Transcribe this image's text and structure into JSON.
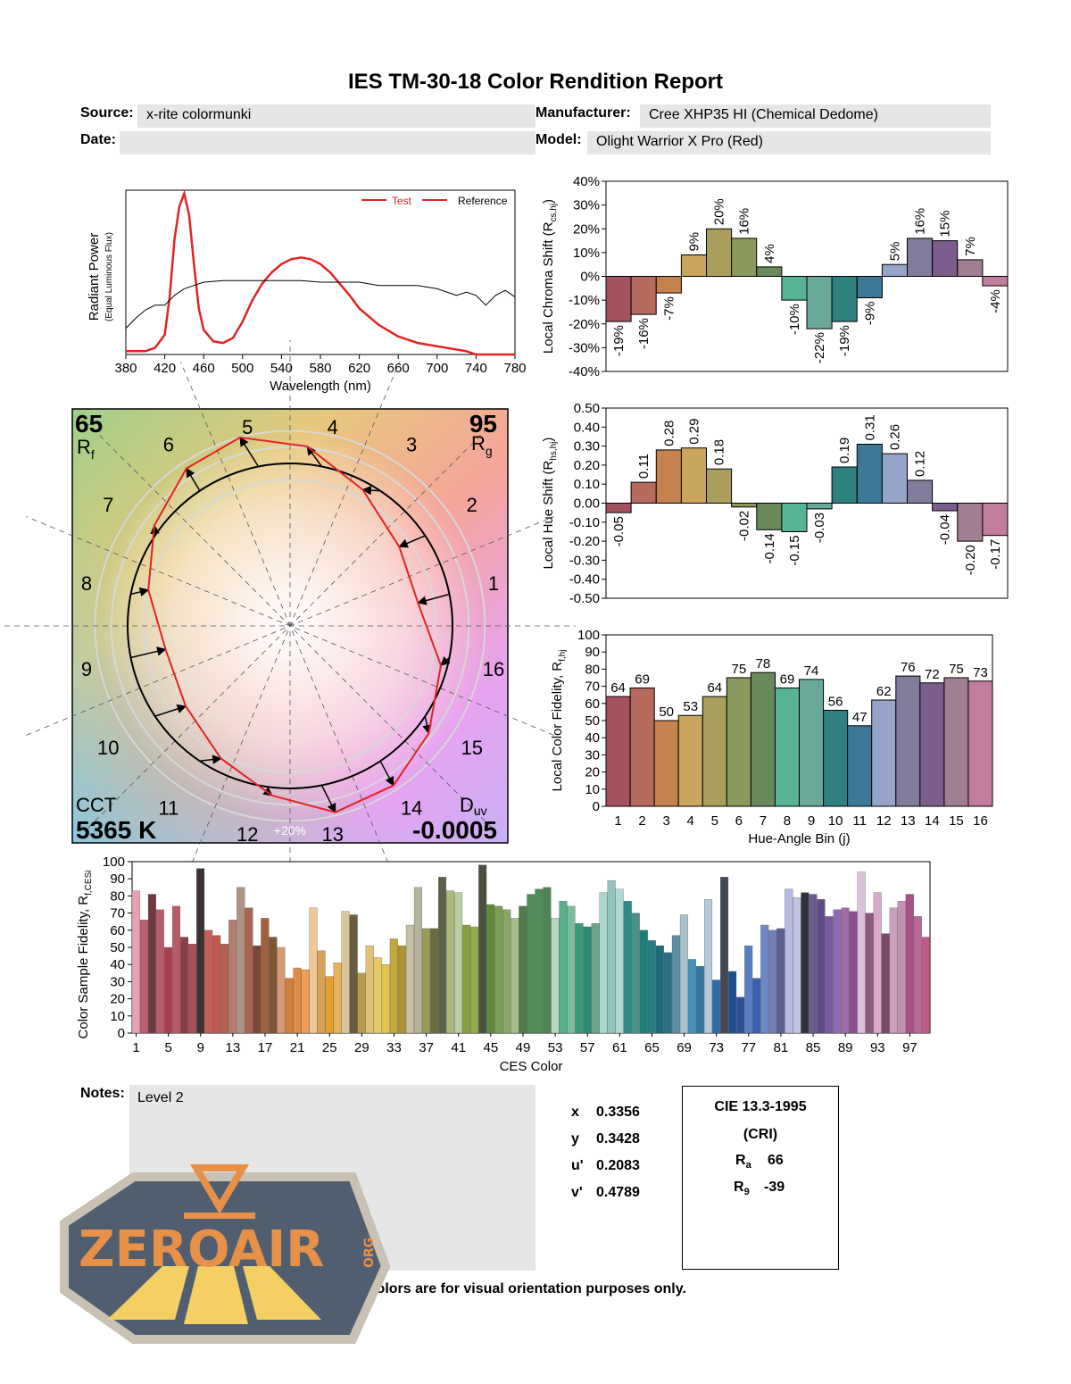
{
  "report": {
    "title": "IES TM-30-18 Color Rendition Report",
    "source_label": "Source:",
    "source_value": "x-rite colormunki",
    "manufacturer_label": "Manufacturer:",
    "manufacturer_value": "Cree XHP35 HI (Chemical Dedome)",
    "date_label": "Date:",
    "date_value": "",
    "model_label": "Model:",
    "model_value": "Olight Warrior X Pro (Red)",
    "notes_label": "Notes:",
    "notes_value": "Level 2",
    "disclaimer": "Colors are for visual orientation purposes only."
  },
  "chromaticity": [
    {
      "label": "x",
      "value": "0.3356"
    },
    {
      "label": "y",
      "value": "0.3428"
    },
    {
      "label": "u'",
      "value": "0.2083"
    },
    {
      "label": "v'",
      "value": "0.4789"
    }
  ],
  "cri": {
    "title": "CIE 13.3-1995",
    "subtitle": "(CRI)",
    "ra_label": "R",
    "ra_sub": "a",
    "ra_value": "66",
    "r9_label": "R",
    "r9_sub": "9",
    "r9_value": "-39"
  },
  "logo": {
    "text": "ZEROAIR",
    "suffix": "ORG"
  },
  "colors": {
    "bins": [
      "#a3525e",
      "#b56a5d",
      "#c5824e",
      "#c9a55e",
      "#a99e5c",
      "#8a9a5d",
      "#688a5a",
      "#57b395",
      "#6aa99a",
      "#2f8080",
      "#3e7897",
      "#95a4c8",
      "#7f7c9c",
      "#7b5e8b",
      "#a27e92",
      "#c27c9d"
    ],
    "test_line": "#e32222",
    "reference_line": "#000000"
  },
  "chart_data": [
    {
      "id": "spd",
      "type": "line",
      "xlabel": "Wavelength (nm)",
      "ylabel": "Radiant Power",
      "ylabel_sub": "(Equal Luminous Flux)",
      "xlim": [
        380,
        780
      ],
      "ylim": [
        0,
        1
      ],
      "xticks": [
        380,
        420,
        460,
        500,
        540,
        580,
        620,
        660,
        700,
        740,
        780
      ],
      "legend": [
        "Test",
        "Reference"
      ],
      "series": [
        {
          "name": "Test",
          "x": [
            380,
            400,
            410,
            420,
            425,
            430,
            435,
            440,
            445,
            450,
            455,
            460,
            470,
            480,
            490,
            500,
            510,
            520,
            530,
            540,
            550,
            560,
            570,
            580,
            590,
            600,
            610,
            620,
            640,
            660,
            680,
            700,
            720,
            730,
            740,
            780
          ],
          "y": [
            0.02,
            0.02,
            0.04,
            0.12,
            0.35,
            0.7,
            0.9,
            0.98,
            0.85,
            0.55,
            0.28,
            0.15,
            0.08,
            0.07,
            0.1,
            0.2,
            0.33,
            0.43,
            0.5,
            0.55,
            0.58,
            0.59,
            0.58,
            0.55,
            0.5,
            0.43,
            0.36,
            0.28,
            0.18,
            0.11,
            0.07,
            0.05,
            0.03,
            0.02,
            0.0,
            0.0
          ]
        },
        {
          "name": "Reference",
          "x": [
            380,
            390,
            400,
            410,
            420,
            430,
            440,
            450,
            460,
            480,
            500,
            520,
            540,
            560,
            580,
            600,
            620,
            640,
            660,
            680,
            700,
            710,
            720,
            730,
            740,
            750,
            760,
            770,
            780
          ],
          "y": [
            0.16,
            0.22,
            0.27,
            0.3,
            0.3,
            0.36,
            0.4,
            0.42,
            0.44,
            0.45,
            0.45,
            0.45,
            0.45,
            0.45,
            0.44,
            0.44,
            0.44,
            0.42,
            0.42,
            0.42,
            0.4,
            0.38,
            0.36,
            0.38,
            0.36,
            0.3,
            0.36,
            0.39,
            0.35
          ]
        }
      ]
    },
    {
      "id": "chroma_shift",
      "type": "bar",
      "ylabel": "Local Chroma Shift (R",
      "ylabel_sub": "cs,hj",
      "ylim": [
        -0.4,
        0.4
      ],
      "yticks": [
        "40%",
        "30%",
        "20%",
        "10%",
        "0%",
        "-10%",
        "-20%",
        "-30%",
        "-40%"
      ],
      "categories": [
        "1",
        "2",
        "3",
        "4",
        "5",
        "6",
        "7",
        "8",
        "9",
        "10",
        "11",
        "12",
        "13",
        "14",
        "15",
        "16"
      ],
      "values": [
        -0.19,
        -0.16,
        -0.07,
        0.09,
        0.2,
        0.16,
        0.04,
        -0.1,
        -0.22,
        -0.19,
        -0.09,
        0.05,
        0.16,
        0.15,
        0.07,
        -0.04
      ],
      "labels": [
        "-19%",
        "-16%",
        "-7%",
        "9%",
        "20%",
        "16%",
        "4%",
        "-10%",
        "-22%",
        "-19%",
        "-9%",
        "5%",
        "16%",
        "15%",
        "7%",
        "-4%"
      ]
    },
    {
      "id": "hue_shift",
      "type": "bar",
      "ylabel": "Local Hue Shift (R",
      "ylabel_sub": "hs,hj",
      "ylim": [
        -0.5,
        0.5
      ],
      "yticks": [
        "0.50",
        "0.40",
        "0.30",
        "0.20",
        "0.10",
        "0.00",
        "-0.10",
        "-0.20",
        "-0.30",
        "-0.40",
        "-0.50"
      ],
      "categories": [
        "1",
        "2",
        "3",
        "4",
        "5",
        "6",
        "7",
        "8",
        "9",
        "10",
        "11",
        "12",
        "13",
        "14",
        "15",
        "16"
      ],
      "values": [
        -0.05,
        0.11,
        0.28,
        0.29,
        0.18,
        -0.02,
        -0.14,
        -0.15,
        -0.03,
        0.19,
        0.31,
        0.26,
        0.12,
        -0.04,
        -0.2,
        -0.17
      ],
      "labels": [
        "-0.05",
        "0.11",
        "0.28",
        "0.29",
        "0.18",
        "-0.02",
        "-0.14",
        "-0.15",
        "-0.03",
        "0.19",
        "0.31",
        "0.26",
        "0.12",
        "-0.04",
        "-0.20",
        "-0.17"
      ]
    },
    {
      "id": "local_fidelity",
      "type": "bar",
      "ylabel": "Local Color Fidelity, R",
      "ylabel_sub": "f,hj",
      "xlabel": "Hue-Angle Bin (j)",
      "ylim": [
        0,
        100
      ],
      "yticks": [
        "100",
        "90",
        "80",
        "70",
        "60",
        "50",
        "40",
        "30",
        "20",
        "10",
        "0"
      ],
      "categories": [
        "1",
        "2",
        "3",
        "4",
        "5",
        "6",
        "7",
        "8",
        "9",
        "10",
        "11",
        "12",
        "13",
        "14",
        "15",
        "16"
      ],
      "values": [
        64,
        69,
        50,
        53,
        64,
        75,
        78,
        69,
        74,
        56,
        47,
        62,
        76,
        72,
        75,
        73
      ],
      "labels": [
        "64",
        "69",
        "50",
        "53",
        "64",
        "75",
        "78",
        "69",
        "74",
        "56",
        "47",
        "62",
        "76",
        "72",
        "75",
        "73"
      ]
    },
    {
      "id": "ces_fidelity",
      "type": "bar",
      "ylabel": "Color Sample Fidelity, R",
      "ylabel_sub": "f,CESi",
      "xlabel": "CES Color",
      "ylim": [
        0,
        100
      ],
      "yticks": [
        "100",
        "90",
        "80",
        "70",
        "60",
        "50",
        "40",
        "30",
        "20",
        "10",
        "0"
      ],
      "xticks": [
        "1",
        "5",
        "9",
        "13",
        "17",
        "21",
        "25",
        "29",
        "33",
        "37",
        "41",
        "45",
        "49",
        "53",
        "57",
        "61",
        "65",
        "69",
        "73",
        "77",
        "81",
        "85",
        "89",
        "93",
        "97"
      ],
      "values": [
        83,
        66,
        81,
        72,
        50,
        74,
        56,
        52,
        96,
        60,
        57,
        52,
        66,
        85,
        73,
        51,
        67,
        56,
        50,
        32,
        38,
        37,
        73,
        48,
        33,
        41,
        71,
        69,
        35,
        51,
        44,
        40,
        55,
        51,
        63,
        85,
        61,
        61,
        91,
        83,
        82,
        63,
        62,
        98,
        75,
        74,
        72,
        67,
        74,
        81,
        84,
        85,
        67,
        77,
        74,
        64,
        62,
        64,
        82,
        89,
        84,
        77,
        70,
        60,
        54,
        51,
        47,
        57,
        69,
        43,
        39,
        78,
        31,
        91,
        36,
        21,
        51,
        32,
        63,
        60,
        61,
        84,
        79,
        82,
        81,
        78,
        68,
        72,
        73,
        71,
        94,
        70,
        82,
        58,
        73,
        77,
        81,
        68,
        56
      ],
      "colors": [
        "#e8a0b3",
        "#b95f6f",
        "#6f3a3f",
        "#b85e6b",
        "#a9424f",
        "#b85a67",
        "#8a3e46",
        "#a84f55",
        "#3a3232",
        "#c65e5a",
        "#c0584c",
        "#b26050",
        "#b07e6e",
        "#b09388",
        "#a8664f",
        "#7a4838",
        "#a0613f",
        "#7d5537",
        "#d59a71",
        "#d27d3a",
        "#e18c3f",
        "#ee9d53",
        "#f2c796",
        "#d7a156",
        "#e79e2f",
        "#eab155",
        "#d8c69a",
        "#6a5c40",
        "#b89a4c",
        "#dfc276",
        "#e8c964",
        "#e2c44e",
        "#c0a83c",
        "#b09432",
        "#c4c1a3",
        "#b5b49c",
        "#9b9b5a",
        "#6c6d3a",
        "#5d6348",
        "#adbb7e",
        "#bacfa3",
        "#8aa03a",
        "#91ad52",
        "#4a523e",
        "#5f8a3e",
        "#7aa05a",
        "#86a866",
        "#a7bd8a",
        "#4f7a4a",
        "#4e8c58",
        "#4b8e5a",
        "#4f8554",
        "#b8d8c0",
        "#56b08a",
        "#7abf9a",
        "#3a9a7a",
        "#2a8a74",
        "#6ba58e",
        "#acd7cc",
        "#93c4bb",
        "#b0d8d2",
        "#2e8c86",
        "#4c8f8c",
        "#1e7f7a",
        "#247e85",
        "#1a6a78",
        "#2c6f85",
        "#5b8ea0",
        "#a9c1cc",
        "#4293b5",
        "#3577a0",
        "#b3c8d8",
        "#2e6aa5",
        "#434a55",
        "#1d4f8e",
        "#2e4f9c",
        "#5a7fc0",
        "#3a5eb0",
        "#6f88c6",
        "#6f80b8",
        "#5a5f8e",
        "#b6bbe2",
        "#c0c4e3",
        "#32323c",
        "#6a5b8e",
        "#5e4a86",
        "#7a5a9c",
        "#8c6bb0",
        "#a06aa4",
        "#8e4f8e",
        "#d9c2d9",
        "#8a5a7e",
        "#d8a8c9",
        "#7a4a6a",
        "#c8a0bc",
        "#c68fb4",
        "#a84f86",
        "#ba6a98",
        "#c05a8a"
      ]
    }
  ],
  "vector_graphic": {
    "rf_value": "65",
    "rf_label": "R",
    "rf_sub": "f",
    "rg_value": "95",
    "rg_label": "R",
    "rg_sub": "g",
    "cct_label": "CCT",
    "cct_value": "5365 K",
    "duv_label": "D",
    "duv_sub": "uv",
    "duv_value": "-0.0005",
    "percent_label": "+20%",
    "bin_numbers": [
      "1",
      "2",
      "3",
      "4",
      "5",
      "6",
      "7",
      "8",
      "9",
      "10",
      "11",
      "12",
      "13",
      "14",
      "15",
      "16"
    ],
    "test_radii": [
      0.8,
      0.83,
      0.95,
      1.11,
      1.2,
      1.16,
      1.04,
      0.9,
      0.78,
      0.81,
      0.92,
      1.05,
      1.18,
      1.17,
      1.08,
      0.96
    ],
    "hue_shifts": [
      -0.05,
      0.11,
      0.28,
      0.29,
      0.18,
      -0.02,
      -0.14,
      -0.15,
      -0.03,
      0.19,
      0.31,
      0.26,
      0.12,
      -0.04,
      -0.2,
      -0.17
    ]
  }
}
